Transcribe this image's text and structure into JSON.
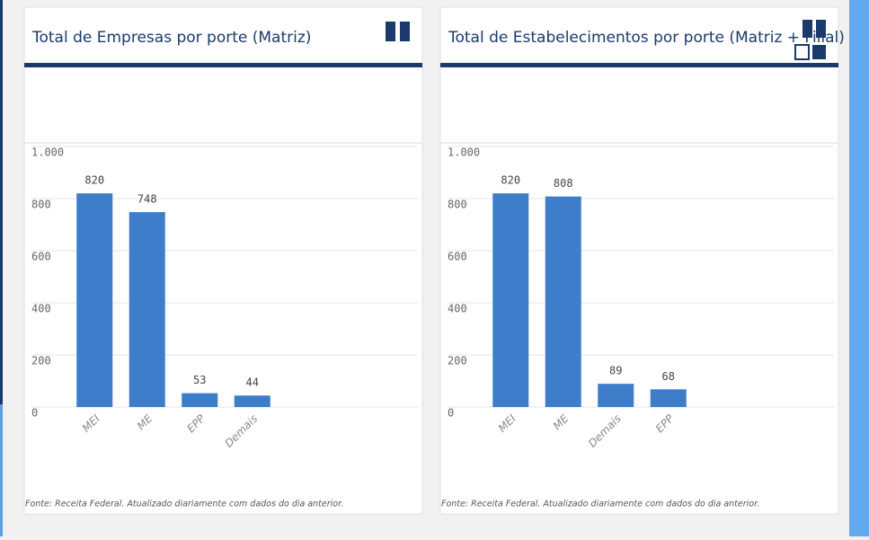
{
  "chart_data": [
    {
      "type": "bar",
      "title": "Total de Empresas por porte (Matriz)",
      "categories": [
        "MEI",
        "ME",
        "EPP",
        "Demais"
      ],
      "values": [
        820,
        748,
        53,
        44
      ],
      "color": "#3d7dca",
      "ylim": [
        0,
        1000
      ],
      "yticks": [
        0,
        200,
        400,
        600,
        800,
        {
          "value": 1000,
          "label": "1.000"
        }
      ],
      "grid": true,
      "source": "Fonte: Receita Federal. Atualizado diariamente com dados do dia anterior."
    },
    {
      "type": "bar",
      "title": "Total de Estabelecimentos por porte (Matriz + Filial)",
      "categories": [
        "MEI",
        "ME",
        "Demais",
        "EPP"
      ],
      "values": [
        820,
        808,
        89,
        68
      ],
      "color": "#3d7dca",
      "ylim": [
        0,
        1000
      ],
      "yticks": [
        0,
        200,
        400,
        600,
        800,
        {
          "value": 1000,
          "label": "1.000"
        }
      ],
      "grid": true,
      "source": "Fonte: Receita Federal. Atualizado diariamente com dados do dia anterior."
    }
  ]
}
